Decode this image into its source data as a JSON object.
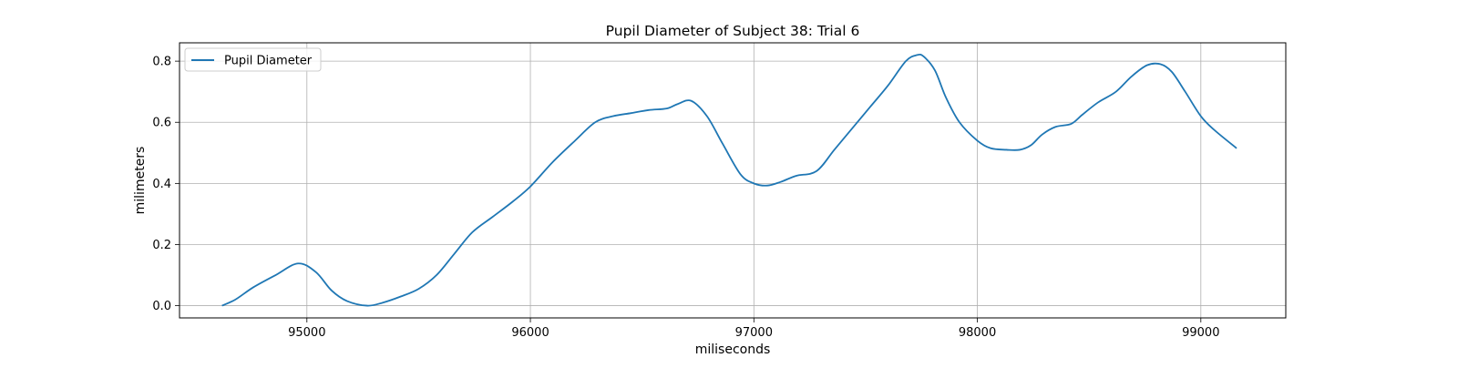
{
  "chart_data": {
    "type": "line",
    "title": "Pupil Diameter of Subject 38: Trial 6",
    "xlabel": "miliseconds",
    "ylabel": "milimeters",
    "xlim": [
      94430,
      99380
    ],
    "ylim": [
      -0.04,
      0.86
    ],
    "xticks": [
      95000,
      96000,
      97000,
      98000,
      99000
    ],
    "yticks": [
      0.0,
      0.2,
      0.4,
      0.6,
      0.8
    ],
    "ytick_labels": [
      "0.0",
      "0.2",
      "0.4",
      "0.6",
      "0.8"
    ],
    "grid": true,
    "legend": {
      "position": "upper-left"
    },
    "series": [
      {
        "name": "Pupil Diameter",
        "color": "#1f77b4",
        "x": [
          94620,
          94680,
          94760,
          94860,
          94960,
          95040,
          95110,
          95180,
          95270,
          95340,
          95420,
          95500,
          95580,
          95660,
          95740,
          95830,
          95920,
          96000,
          96100,
          96200,
          96290,
          96370,
          96450,
          96530,
          96610,
          96660,
          96720,
          96790,
          96860,
          96940,
          97000,
          97060,
          97120,
          97190,
          97280,
          97360,
          97440,
          97520,
          97600,
          97680,
          97730,
          97760,
          97810,
          97860,
          97920,
          98000,
          98060,
          98130,
          98190,
          98240,
          98290,
          98350,
          98420,
          98470,
          98540,
          98620,
          98690,
          98760,
          98820,
          98870,
          98930,
          99000,
          99060,
          99160
        ],
        "y": [
          0.0,
          0.02,
          0.06,
          0.1,
          0.138,
          0.11,
          0.05,
          0.015,
          0.0,
          0.01,
          0.03,
          0.055,
          0.1,
          0.17,
          0.24,
          0.29,
          0.34,
          0.39,
          0.47,
          0.54,
          0.6,
          0.62,
          0.63,
          0.64,
          0.645,
          0.66,
          0.67,
          0.62,
          0.53,
          0.43,
          0.4,
          0.393,
          0.405,
          0.425,
          0.44,
          0.51,
          0.58,
          0.65,
          0.72,
          0.8,
          0.82,
          0.815,
          0.77,
          0.68,
          0.6,
          0.54,
          0.515,
          0.51,
          0.51,
          0.525,
          0.56,
          0.585,
          0.595,
          0.625,
          0.665,
          0.7,
          0.75,
          0.787,
          0.79,
          0.765,
          0.7,
          0.62,
          0.575,
          0.515
        ]
      }
    ]
  }
}
